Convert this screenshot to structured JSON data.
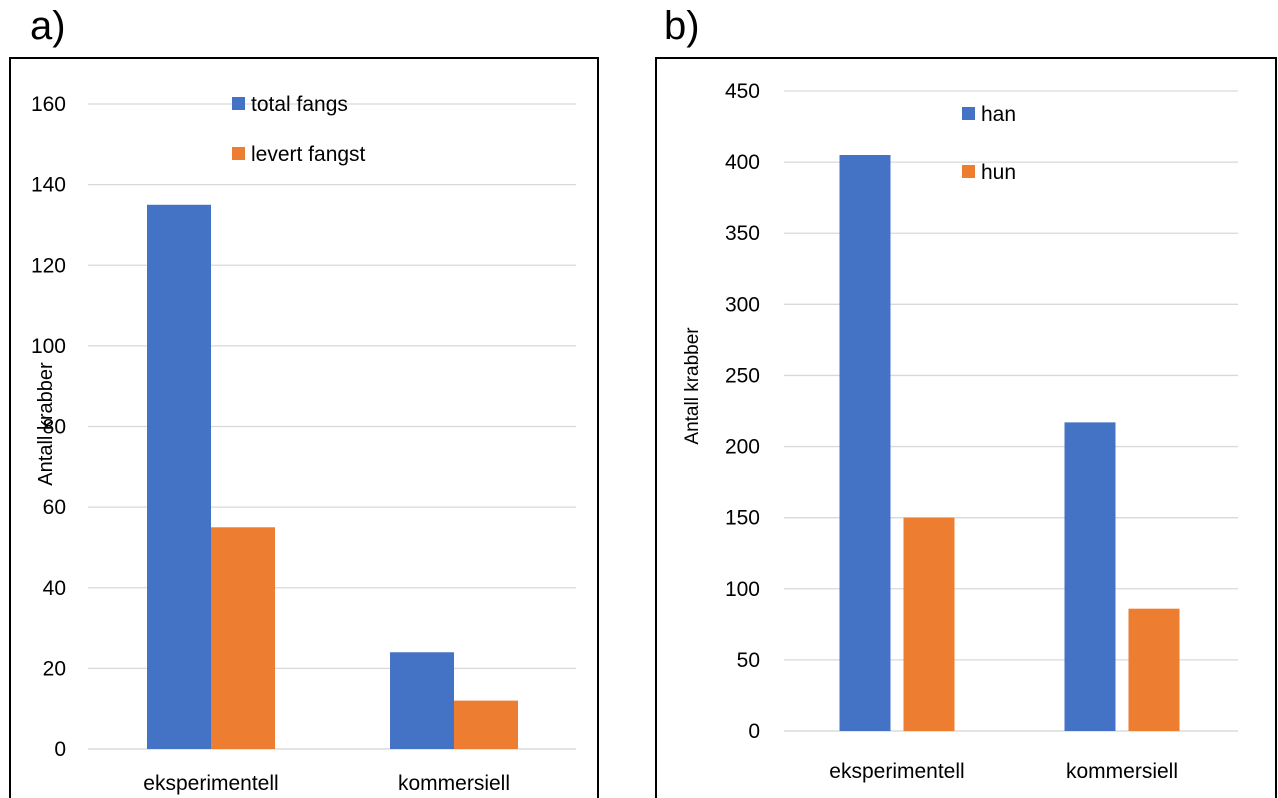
{
  "panels": [
    {
      "letter": "a)"
    },
    {
      "letter": "b)"
    }
  ],
  "colors": {
    "blue": "#4472c4",
    "orange": "#ed7d31",
    "grid": "#d9d9d9",
    "frame": "#000000"
  },
  "chart_data": [
    {
      "type": "bar",
      "title": "",
      "xlabel": "",
      "ylabel": "Antall krabber",
      "ylim": [
        0,
        160
      ],
      "yticks": [
        0,
        20,
        40,
        60,
        80,
        100,
        120,
        140,
        160
      ],
      "ytick_labels": [
        "0",
        "20",
        "40",
        "60",
        "80",
        "100",
        "120",
        "140",
        "160"
      ],
      "grid": true,
      "legend_position": "top-right",
      "categories": [
        "eksperimentell",
        "kommersiell"
      ],
      "series": [
        {
          "name": "total fangs",
          "color": "#4472c4",
          "values": [
            135,
            24
          ]
        },
        {
          "name": "levert fangst",
          "color": "#ed7d31",
          "values": [
            55,
            12
          ]
        }
      ]
    },
    {
      "type": "bar",
      "title": "",
      "xlabel": "",
      "ylabel": "Antall krabber",
      "ylim": [
        0,
        450
      ],
      "yticks": [
        0,
        50,
        100,
        150,
        200,
        250,
        300,
        350,
        400,
        450
      ],
      "ytick_labels": [
        "0",
        "50",
        "100",
        "150",
        "200",
        "250",
        "300",
        "350",
        "400",
        "450"
      ],
      "grid": true,
      "legend_position": "top-center",
      "categories": [
        "eksperimentell",
        "kommersiell"
      ],
      "series": [
        {
          "name": "han",
          "color": "#4472c4",
          "values": [
            405,
            217
          ]
        },
        {
          "name": "hun",
          "color": "#ed7d31",
          "values": [
            150,
            86
          ]
        }
      ]
    }
  ]
}
